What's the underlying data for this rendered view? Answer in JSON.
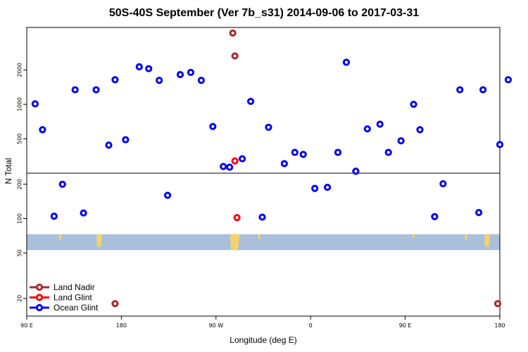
{
  "chart_data": {
    "type": "scatter",
    "title": "50S-40S September (Ver 7b_s31)   2014-09-06 to 2017-03-31",
    "xlabel": "Longitude (deg E)",
    "ylabel": "N Total",
    "x_tick_labels": [
      "90 E",
      "180",
      "90 W",
      "0",
      "90 E",
      "180"
    ],
    "x_tick_values": [
      90,
      180,
      270,
      360,
      450,
      540
    ],
    "xlim": [
      90,
      540
    ],
    "y_scale": "log",
    "y_upper_panel": {
      "ticks": [
        "500",
        "1000",
        "2000"
      ],
      "tick_values": [
        500,
        1000,
        2000
      ],
      "ylim": [
        250,
        4700
      ]
    },
    "y_lower_panel": {
      "ticks": [
        "20",
        "50",
        "100",
        "200"
      ],
      "tick_values": [
        20,
        50,
        100,
        200
      ],
      "ylim": [
        14,
        250
      ]
    },
    "land_mask_band": {
      "y_range": [
        53,
        73
      ]
    },
    "legend": {
      "position": "bottom-left"
    },
    "series": [
      {
        "name": "Land Nadir",
        "color": "#a52a2a",
        "points": [
          [
            286,
            4200
          ],
          [
            288,
            2650
          ],
          [
            174,
            18
          ],
          [
            538,
            18
          ]
        ]
      },
      {
        "name": "Land Glint",
        "color": "#ff0000",
        "points": [
          [
            288,
            320
          ],
          [
            290,
            102
          ]
        ]
      },
      {
        "name": "Ocean Glint",
        "color": "#0000ee",
        "points": [
          [
            98,
            1010
          ],
          [
            105,
            600
          ],
          [
            116,
            105
          ],
          [
            124,
            200
          ],
          [
            136,
            1340
          ],
          [
            144,
            112
          ],
          [
            156,
            1340
          ],
          [
            168,
            440
          ],
          [
            174,
            1640
          ],
          [
            184,
            490
          ],
          [
            197,
            2130
          ],
          [
            206,
            2050
          ],
          [
            216,
            1620
          ],
          [
            224,
            160
          ],
          [
            236,
            1820
          ],
          [
            246,
            1900
          ],
          [
            256,
            1620
          ],
          [
            267,
            640
          ],
          [
            277,
            286
          ],
          [
            283,
            282
          ],
          [
            295,
            334
          ],
          [
            303,
            1060
          ],
          [
            314,
            103
          ],
          [
            320,
            630
          ],
          [
            335,
            303
          ],
          [
            345,
            380
          ],
          [
            353,
            365
          ],
          [
            364,
            184
          ],
          [
            376,
            188
          ],
          [
            386,
            380
          ],
          [
            394,
            2330
          ],
          [
            403,
            260
          ],
          [
            414,
            610
          ],
          [
            426,
            670
          ],
          [
            434,
            380
          ],
          [
            446,
            480
          ],
          [
            458,
            1000
          ],
          [
            464,
            600
          ],
          [
            478,
            104
          ],
          [
            486,
            202
          ],
          [
            502,
            1340
          ],
          [
            520,
            113
          ],
          [
            524,
            1340
          ],
          [
            540,
            445
          ],
          [
            548,
            1640
          ]
        ]
      }
    ]
  }
}
